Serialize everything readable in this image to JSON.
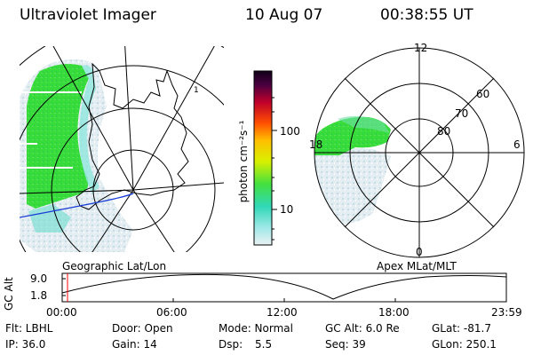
{
  "header": {
    "title": "Ultraviolet Imager",
    "date": "10 Aug 07",
    "time": "00:38:55 UT"
  },
  "geo_panel": {
    "label": "Geographic Lat/Lon"
  },
  "colorbar": {
    "unit_label": "photon cm⁻²s⁻¹",
    "ticks": [
      "100",
      "10"
    ],
    "scale": "log"
  },
  "polar_panel": {
    "label": "Apex MLat/MLT",
    "mlt_labels": [
      "12",
      "18",
      "6",
      "0"
    ],
    "lat_labels": [
      "60",
      "70",
      "80"
    ]
  },
  "altitude_plot": {
    "ylabel": "GC Alt",
    "yticks": [
      "9.0",
      "1.8"
    ],
    "xticks": [
      "00:00",
      "06:00",
      "12:00",
      "18:00",
      "23:59"
    ],
    "current_marker_time": "00:38:55"
  },
  "info": {
    "col1": [
      "Flt: LBHL",
      "IP: 36.0"
    ],
    "col2": [
      "Door: Open",
      "Gain: 14"
    ],
    "col3a": [
      "Mode: Normal",
      "Dsp:"
    ],
    "col3b": [
      "",
      "5.5"
    ],
    "col4a": [
      "GC Alt: 6.0 Re",
      "Seq: 39"
    ],
    "col5": [
      "GLat: -81.7",
      "GLon: 250.1"
    ]
  },
  "colors": {
    "aurora_strong": "#33dd33",
    "aurora_mid": "#55ddcc",
    "aurora_faint": "#dde8ee",
    "marker": "#ff0000",
    "terminator": "#1a3cd8"
  }
}
